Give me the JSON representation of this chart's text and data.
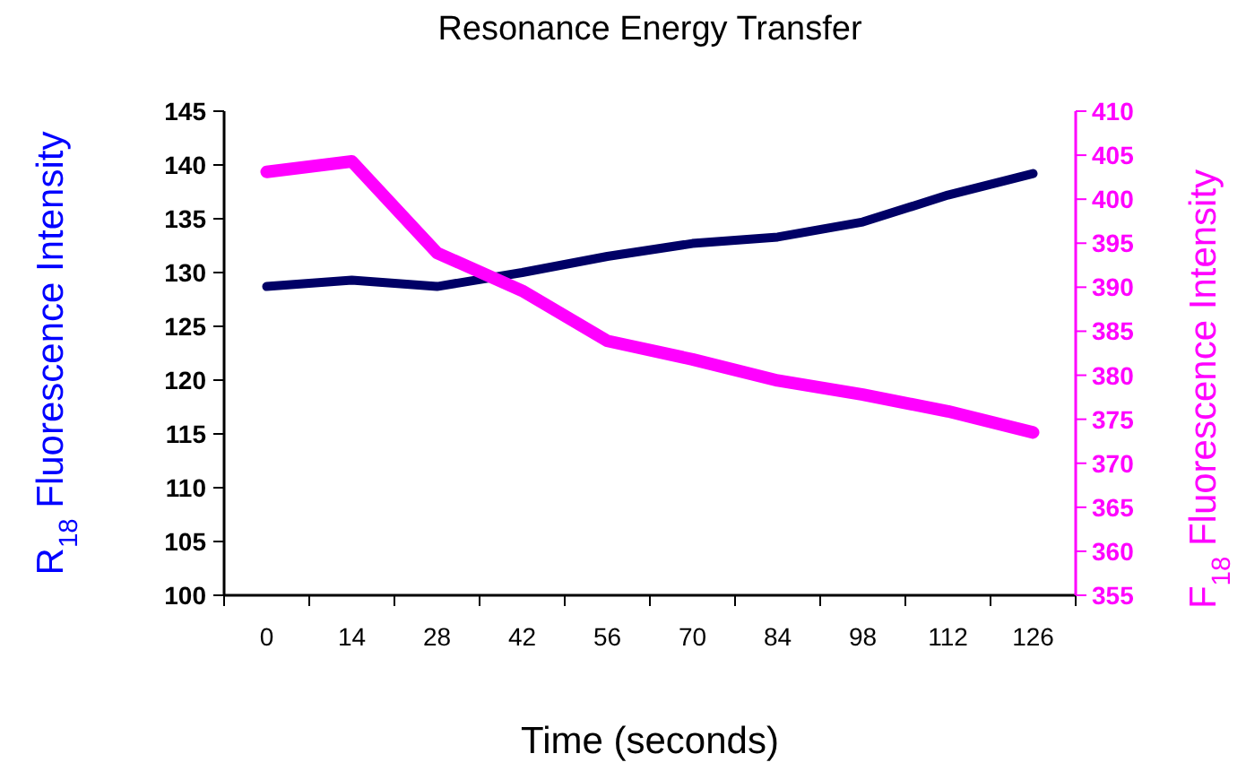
{
  "chart_data": {
    "type": "line",
    "title": "Resonance Energy Transfer",
    "xlabel": "Time (seconds)",
    "ylabel": "R$_{18}$ Fluorescence Intensity",
    "y2label": "F$_{18}$ Fluorescence Intensity",
    "categories": [
      "0",
      "14",
      "28",
      "42",
      "56",
      "70",
      "84",
      "98",
      "112",
      "126"
    ],
    "ylim": [
      100,
      145
    ],
    "yticks": [
      100,
      105,
      110,
      115,
      120,
      125,
      130,
      135,
      140,
      145
    ],
    "y2lim": [
      355,
      410
    ],
    "y2ticks": [
      355,
      360,
      365,
      370,
      375,
      380,
      385,
      390,
      395,
      400,
      405,
      410
    ],
    "marker": "none",
    "line_style": "solid",
    "series": [
      {
        "color": "#000066",
        "values": [
          128.7,
          129.3,
          128.7,
          130,
          131.5,
          132.7,
          133.3,
          134.7,
          137.2,
          139.2
        ]
      },
      {
        "color": "#ff00ff",
        "axis": "y2",
        "values": [
          403.1,
          404.3,
          393.9,
          389.6,
          383.9,
          381.8,
          379.4,
          377.8,
          375.9,
          373.5
        ]
      }
    ]
  }
}
